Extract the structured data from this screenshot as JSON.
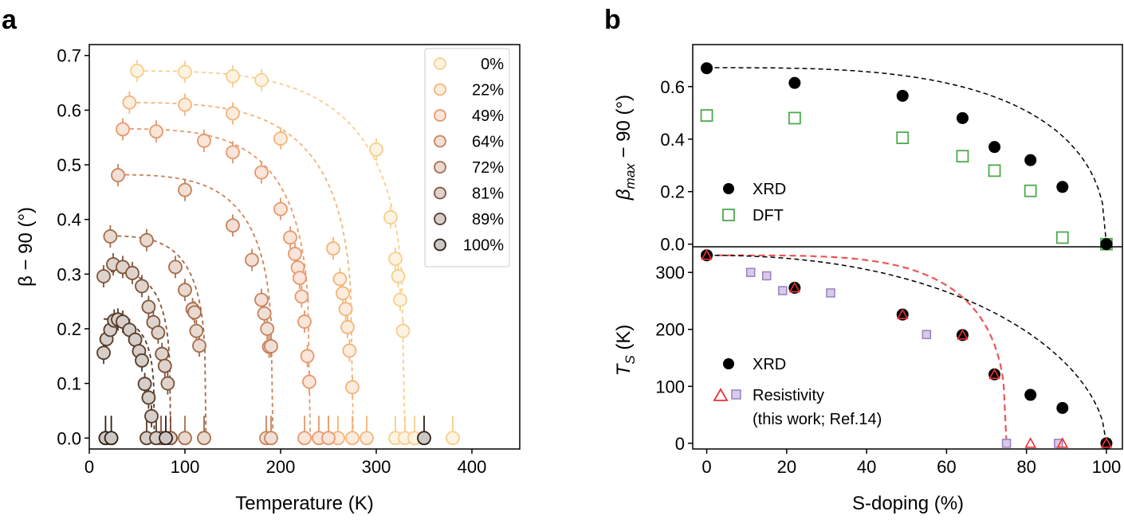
{
  "chart_data": [
    {
      "panel": "a",
      "type": "scatter",
      "xlabel": "Temperature (K)",
      "ylabel": "β − 90 (°)",
      "xlim": [
        0,
        450
      ],
      "ylim": [
        -0.02,
        0.72
      ],
      "xticks": [
        "0",
        "100",
        "200",
        "300",
        "400"
      ],
      "yticks": [
        "0.0",
        "0.1",
        "0.2",
        "0.3",
        "0.4",
        "0.5",
        "0.6",
        "0.7"
      ],
      "legend_position": "top-right",
      "series": [
        {
          "name": "0%",
          "color": "#f7cf8c",
          "x": [
            50,
            100,
            150,
            180,
            300,
            315,
            320,
            323,
            325,
            328,
            320,
            330,
            340,
            380
          ],
          "y": [
            0.672,
            0.67,
            0.662,
            0.655,
            0.528,
            0.404,
            0.328,
            0.296,
            0.253,
            0.196,
            0,
            0,
            0,
            0
          ]
        },
        {
          "name": "22%",
          "color": "#f3b478",
          "x": [
            42,
            100,
            150,
            200,
            255,
            262,
            265,
            268,
            270,
            272,
            275,
            260,
            275,
            290
          ],
          "y": [
            0.614,
            0.61,
            0.594,
            0.548,
            0.347,
            0.291,
            0.265,
            0.236,
            0.203,
            0.16,
            0.093,
            0,
            0,
            0
          ]
        },
        {
          "name": "49%",
          "color": "#e8986a",
          "x": [
            35,
            70,
            120,
            150,
            180,
            200,
            210,
            215,
            218,
            220,
            222,
            225,
            228,
            230,
            225,
            240,
            250
          ],
          "y": [
            0.565,
            0.561,
            0.544,
            0.523,
            0.486,
            0.419,
            0.367,
            0.337,
            0.312,
            0.293,
            0.259,
            0.213,
            0.15,
            0.103,
            0,
            0,
            0
          ]
        },
        {
          "name": "64%",
          "color": "#c8835b",
          "x": [
            30,
            100,
            150,
            170,
            180,
            183,
            186,
            188,
            190,
            185,
            190
          ],
          "y": [
            0.481,
            0.454,
            0.389,
            0.326,
            0.253,
            0.228,
            0.2,
            0.167,
            0.168,
            0,
            0
          ]
        },
        {
          "name": "72%",
          "color": "#a66c48",
          "x": [
            22,
            60,
            90,
            100,
            108,
            110,
            112,
            115,
            100,
            120
          ],
          "y": [
            0.369,
            0.362,
            0.313,
            0.271,
            0.236,
            0.23,
            0.196,
            0.169,
            0,
            0
          ]
        },
        {
          "name": "81%",
          "color": "#7e5338",
          "x": [
            15,
            25,
            35,
            45,
            55,
            62,
            67,
            72,
            76,
            79,
            82,
            75,
            85
          ],
          "y": [
            0.296,
            0.318,
            0.313,
            0.302,
            0.278,
            0.24,
            0.212,
            0.193,
            0.154,
            0.132,
            0.1,
            0,
            0
          ]
        },
        {
          "name": "89%",
          "color": "#573a27",
          "x": [
            15,
            18,
            22,
            26,
            30,
            35,
            42,
            48,
            52,
            55,
            58,
            62,
            65,
            60,
            70
          ],
          "y": [
            0.156,
            0.181,
            0.198,
            0.215,
            0.217,
            0.213,
            0.198,
            0.18,
            0.159,
            0.142,
            0.099,
            0.074,
            0.04,
            0,
            0
          ]
        },
        {
          "name": "100%",
          "color": "#2e1e12",
          "x": [
            17,
            23,
            80,
            350
          ],
          "y": [
            0,
            0,
            0,
            0
          ]
        }
      ],
      "fit_curves": [
        {
          "series": "0%",
          "tc": 330,
          "beta0": 0.672
        },
        {
          "series": "22%",
          "tc": 276,
          "beta0": 0.614
        },
        {
          "series": "49%",
          "tc": 231,
          "beta0": 0.566
        },
        {
          "series": "64%",
          "tc": 192,
          "beta0": 0.482
        },
        {
          "series": "72%",
          "tc": 122,
          "beta0": 0.37
        },
        {
          "series": "81%",
          "tc": 85,
          "beta0": 0.305
        },
        {
          "series": "89%",
          "tc": 68,
          "beta0": 0.218
        }
      ]
    },
    {
      "panel": "b-top",
      "type": "scatter",
      "xlabel": "",
      "ylabel": "βmax − 90 (°)",
      "xlim": [
        -3.5,
        104
      ],
      "ylim": [
        -0.01,
        0.76
      ],
      "xticks": [
        "0",
        "20",
        "40",
        "60",
        "80",
        "100"
      ],
      "yticks": [
        "0.0",
        "0.2",
        "0.4",
        "0.6"
      ],
      "legend_position": "left",
      "series": [
        {
          "name": "XRD",
          "color": "#000000",
          "x": [
            0,
            22,
            49,
            64,
            72,
            81,
            89,
            100
          ],
          "y": [
            0.67,
            0.614,
            0.565,
            0.48,
            0.37,
            0.32,
            0.218,
            0
          ]
        },
        {
          "name": "DFT",
          "color": "#4daa4d",
          "x": [
            0,
            22,
            49,
            64,
            72,
            81,
            89,
            100
          ],
          "y": [
            0.49,
            0.48,
            0.405,
            0.335,
            0.28,
            0.203,
            0.025,
            0
          ]
        }
      ]
    },
    {
      "panel": "b-bottom",
      "type": "scatter",
      "xlabel": "S-doping (%)",
      "ylabel": "TS (K)",
      "xlim": [
        -3.5,
        104
      ],
      "ylim": [
        -10,
        345
      ],
      "xticks": [
        "0",
        "20",
        "40",
        "60",
        "80",
        "100"
      ],
      "yticks": [
        "0",
        "100",
        "200",
        "300"
      ],
      "legend_position": "lower-left",
      "series": [
        {
          "name": "XRD",
          "color": "#000000",
          "x": [
            0,
            22,
            49,
            64,
            72,
            81,
            89,
            100
          ],
          "y": [
            330,
            273,
            226,
            190,
            121,
            85,
            62,
            0
          ]
        },
        {
          "name": "Resistivity (this work)",
          "color": "#ee3333",
          "x": [
            0,
            22,
            49,
            64,
            72,
            81,
            89,
            100
          ],
          "y": [
            330,
            273,
            226,
            190,
            121,
            0,
            0,
            0
          ]
        },
        {
          "name": "Resistivity (Ref.14)",
          "color": "#9980c0",
          "x": [
            0,
            11,
            15,
            19,
            31,
            55,
            75,
            88,
            100
          ],
          "y": [
            330,
            300,
            294,
            268,
            264,
            191,
            0,
            0,
            0
          ]
        }
      ],
      "fit_curves": [
        {
          "name": "XRD fit",
          "style": "black-dashed"
        },
        {
          "name": "Resistivity fit",
          "style": "red-dashed",
          "end_x": 75
        }
      ]
    }
  ],
  "labels": {
    "panel_a": "a",
    "panel_b": "b",
    "a_xlabel": "Temperature (K)",
    "a_ylabel": "β − 90 (°)",
    "b_top_ylabel_main": "β",
    "b_top_ylabel_sub": "max",
    "b_top_ylabel_rest": " − 90 (°)",
    "b_bottom_ylabel_main": "T",
    "b_bottom_ylabel_sub": "S",
    "b_bottom_ylabel_rest": " (K)",
    "b_xlabel": "S-doping (%)",
    "legend_xrd": "XRD",
    "legend_dft": "DFT",
    "legend_res_1": "Resistivity",
    "legend_res_2": "(this work; Ref.14)"
  }
}
